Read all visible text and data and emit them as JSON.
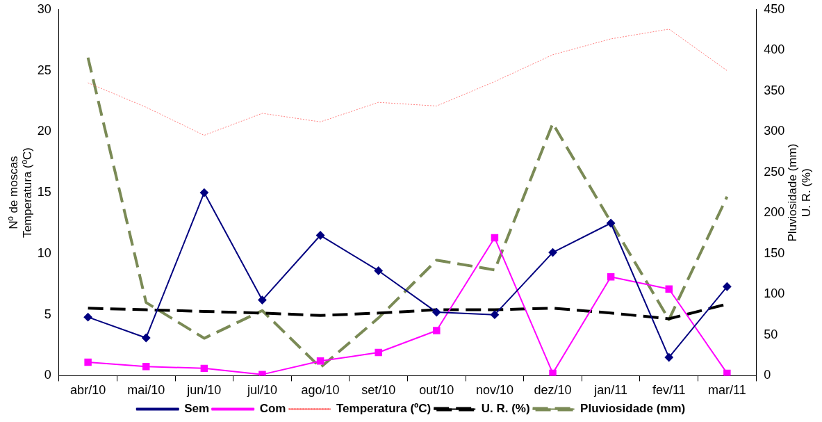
{
  "chart_data": {
    "type": "line",
    "xlabel": null,
    "ylabel": "Nº de moscas\nTemperatura (ºC)",
    "y2label": "Pluviosidade (mm)\nU. R. (%)",
    "categories": [
      "abr/10",
      "mai/10",
      "jun/10",
      "jul/10",
      "ago/10",
      "set/10",
      "out/10",
      "nov/10",
      "dez/10",
      "jan/11",
      "fev/11",
      "mar/11"
    ],
    "ylim": [
      0,
      30
    ],
    "yticks": [
      0,
      5,
      10,
      15,
      20,
      25,
      30
    ],
    "y2lim": [
      0,
      450
    ],
    "y2ticks": [
      0,
      50,
      100,
      150,
      200,
      250,
      300,
      350,
      400,
      450
    ],
    "grid": false,
    "legend": "bottom",
    "series": [
      {
        "name": "Sem",
        "color": "#000080",
        "marker": "diamond",
        "line_style": "solid",
        "values": [
          4.8,
          3.1,
          15.0,
          6.2,
          11.5,
          8.6,
          5.2,
          5.0,
          10.1,
          12.5,
          1.5,
          7.3
        ]
      },
      {
        "name": "Com",
        "color": "#ff00ff",
        "marker": "square",
        "line_style": "solid",
        "values": [
          1.1,
          0.75,
          0.6,
          0.1,
          1.2,
          1.9,
          3.7,
          11.3,
          0.2,
          8.1,
          7.1,
          0.2
        ]
      },
      {
        "name": "Temperatura (ºC)",
        "color": "#ff8080",
        "marker": "none",
        "line_style": "dotted",
        "values": [
          24.0,
          22.0,
          19.7,
          21.5,
          20.8,
          22.4,
          22.1,
          24.1,
          26.3,
          27.6,
          28.4,
          25.0
        ]
      },
      {
        "name": "U. R. (%)",
        "color": "#000000",
        "marker": "none",
        "line_style": "dashed",
        "axis": "y2",
        "values": [
          83,
          81,
          79,
          77,
          74,
          77,
          81,
          81,
          83,
          77,
          70,
          88
        ]
      },
      {
        "name": "Pluviosidade (mm)",
        "color": "#7a8a55",
        "marker": "none",
        "line_style": "dashed",
        "axis": "y2",
        "values": [
          391,
          90,
          46,
          80,
          10,
          71,
          142,
          130,
          310,
          189,
          69,
          220
        ]
      }
    ]
  }
}
